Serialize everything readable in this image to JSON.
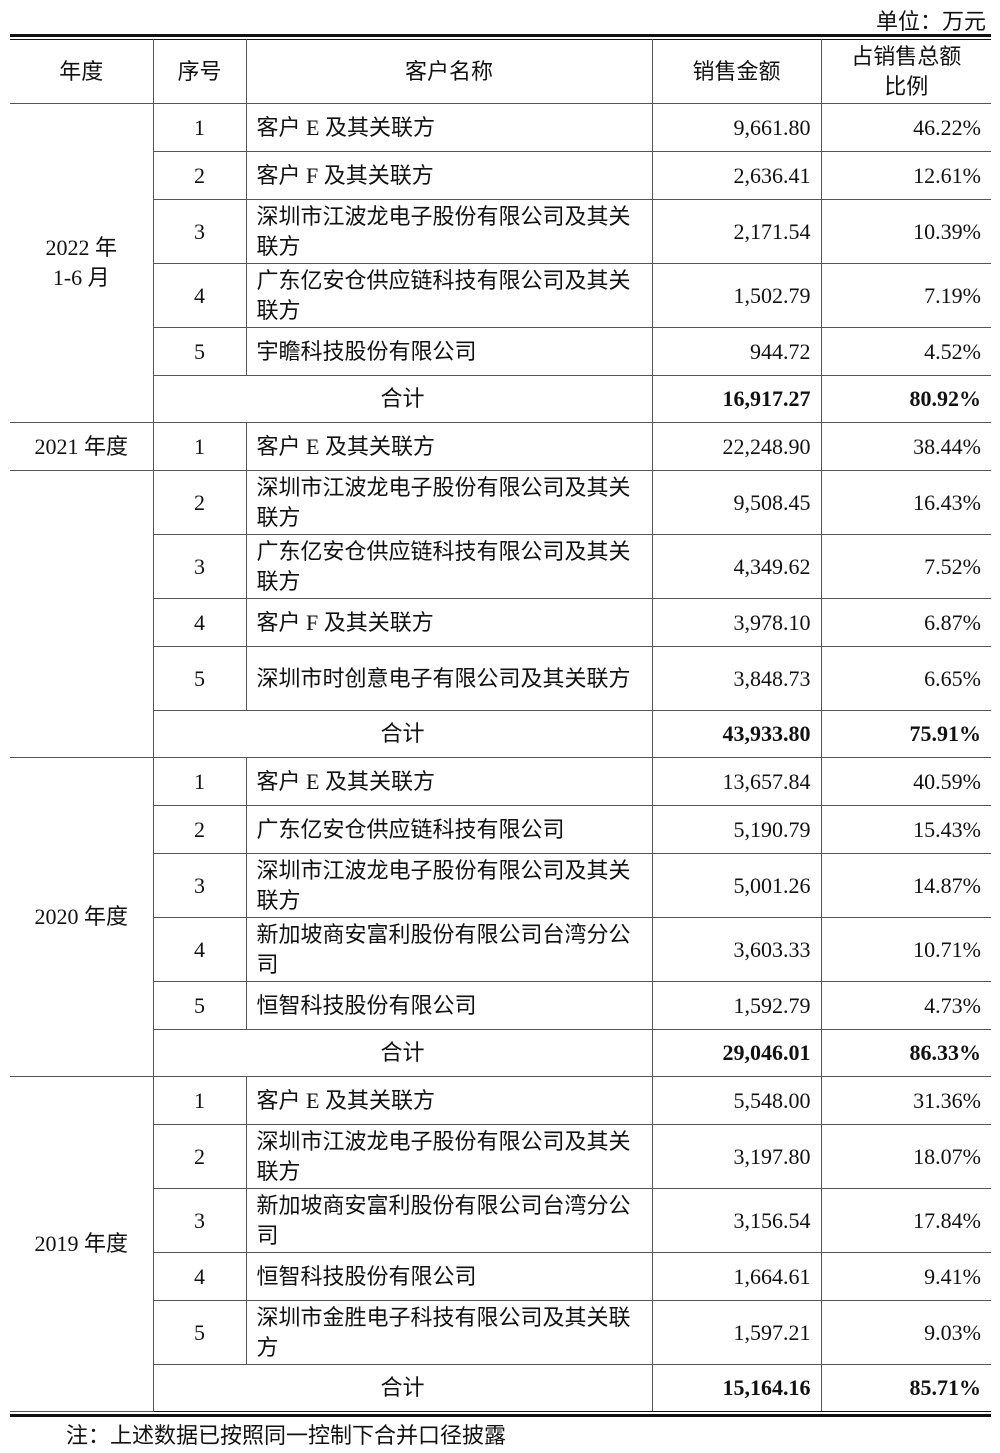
{
  "unit_label": "单位：万元",
  "headers": [
    "年度",
    "序号",
    "客户名称",
    "销售金额",
    "占销售总额比例"
  ],
  "header_ratio_lines": [
    "占销售总额",
    "比例"
  ],
  "total_label": "合计",
  "groups": [
    {
      "year": "2022 年\n1-6 月",
      "rows": [
        [
          "1",
          "客户 E 及其关联方",
          "9,661.80",
          "46.22%"
        ],
        [
          "2",
          "客户 F 及其关联方",
          "2,636.41",
          "12.61%"
        ],
        [
          "3",
          "深圳市江波龙电子股份有限公司及其关联方",
          "2,171.54",
          "10.39%"
        ],
        [
          "4",
          "广东亿安仓供应链科技有限公司及其关联方",
          "1,502.79",
          "7.19%"
        ],
        [
          "5",
          "宇瞻科技股份有限公司",
          "944.72",
          "4.52%"
        ]
      ],
      "total": [
        "16,917.27",
        "80.92%"
      ]
    },
    {
      "year": "2021 年度",
      "split": true,
      "rows": [
        [
          "1",
          "客户 E 及其关联方",
          "22,248.90",
          "38.44%"
        ],
        [
          "2",
          "深圳市江波龙电子股份有限公司及其关联方",
          "9,508.45",
          "16.43%"
        ],
        [
          "3",
          "广东亿安仓供应链科技有限公司及其关联方",
          "4,349.62",
          "7.52%"
        ],
        [
          "4",
          "客户 F 及其关联方",
          "3,978.10",
          "6.87%"
        ],
        [
          "5",
          "深圳市时创意电子有限公司及其关联方",
          "3,848.73",
          "6.65%"
        ]
      ],
      "total": [
        "43,933.80",
        "75.91%"
      ]
    },
    {
      "year": "2020 年度",
      "rows": [
        [
          "1",
          "客户 E 及其关联方",
          "13,657.84",
          "40.59%"
        ],
        [
          "2",
          "广东亿安仓供应链科技有限公司",
          "5,190.79",
          "15.43%"
        ],
        [
          "3",
          "深圳市江波龙电子股份有限公司及其关联方",
          "5,001.26",
          "14.87%"
        ],
        [
          "4",
          "新加坡商安富利股份有限公司台湾分公司",
          "3,603.33",
          "10.71%"
        ],
        [
          "5",
          "恒智科技股份有限公司",
          "1,592.79",
          "4.73%"
        ]
      ],
      "total": [
        "29,046.01",
        "86.33%"
      ]
    },
    {
      "year": "2019 年度",
      "rows": [
        [
          "1",
          "客户 E 及其关联方",
          "5,548.00",
          "31.36%"
        ],
        [
          "2",
          "深圳市江波龙电子股份有限公司及其关联方",
          "3,197.80",
          "18.07%"
        ],
        [
          "3",
          "新加坡商安富利股份有限公司台湾分公司",
          "3,156.54",
          "17.84%"
        ],
        [
          "4",
          "恒智科技股份有限公司",
          "1,664.61",
          "9.41%"
        ],
        [
          "5",
          "深圳市金胜电子科技有限公司及其关联方",
          "1,597.21",
          "9.03%"
        ]
      ],
      "total": [
        "15,164.16",
        "85.71%"
      ]
    }
  ],
  "note": "注：上述数据已按照同一控制下合并口径披露"
}
